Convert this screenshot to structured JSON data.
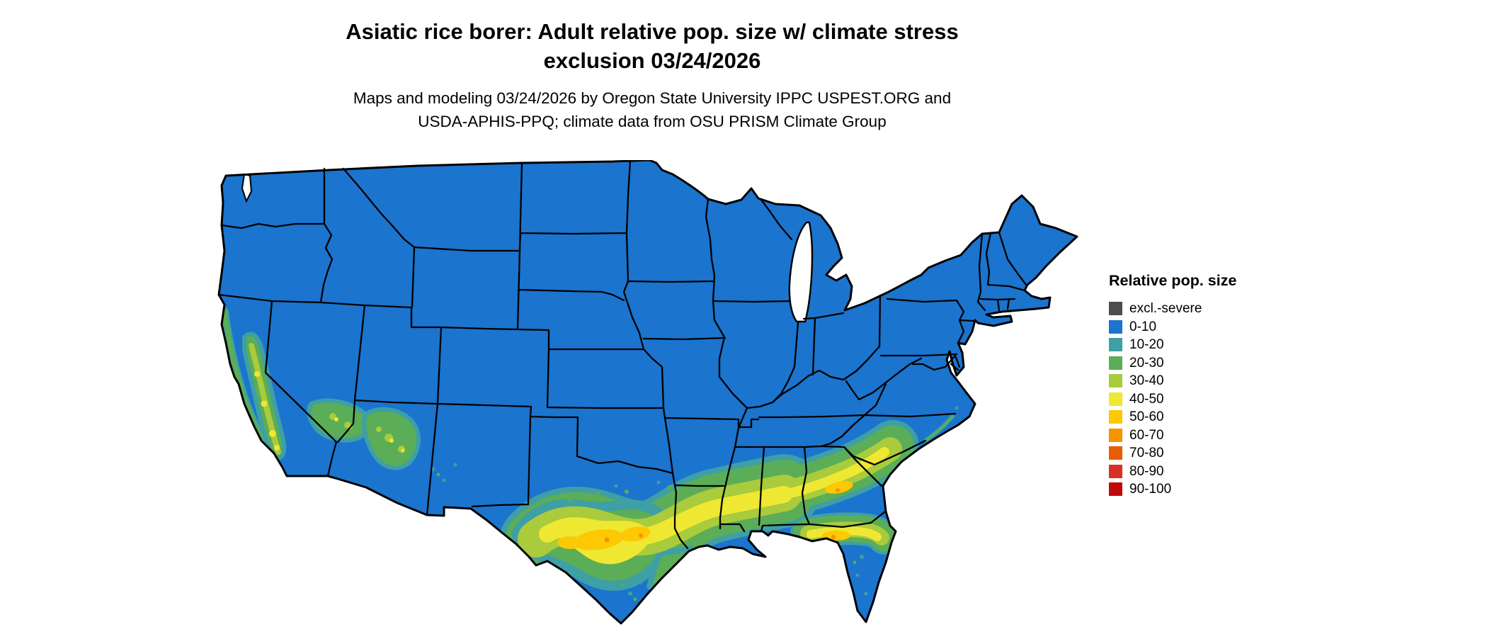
{
  "title": {
    "line1": "Asiatic rice borer: Adult relative pop. size w/ climate stress",
    "line2": "exclusion 03/24/2026"
  },
  "subtitle": {
    "line1": "Maps and modeling 03/24/2026 by Oregon State University IPPC USPEST.ORG and",
    "line2": "USDA-APHIS-PPQ; climate data from OSU PRISM Climate Group"
  },
  "legend": {
    "title": "Relative pop. size",
    "items": [
      {
        "label": "excl.-severe",
        "color": "#4D4D4D"
      },
      {
        "label": "0-10",
        "color": "#1B74CE"
      },
      {
        "label": "10-20",
        "color": "#3E9FA5"
      },
      {
        "label": "20-30",
        "color": "#5BAD57"
      },
      {
        "label": "30-40",
        "color": "#A9CB3C"
      },
      {
        "label": "40-50",
        "color": "#EFE832"
      },
      {
        "label": "50-60",
        "color": "#FDC804"
      },
      {
        "label": "60-70",
        "color": "#F59300"
      },
      {
        "label": "70-80",
        "color": "#E85D04"
      },
      {
        "label": "80-90",
        "color": "#D93025"
      },
      {
        "label": "90-100",
        "color": "#C00A0A"
      }
    ]
  },
  "map": {
    "region": "Contiguous United States",
    "background": "#FFFFFF",
    "boundary_color": "#000000"
  }
}
